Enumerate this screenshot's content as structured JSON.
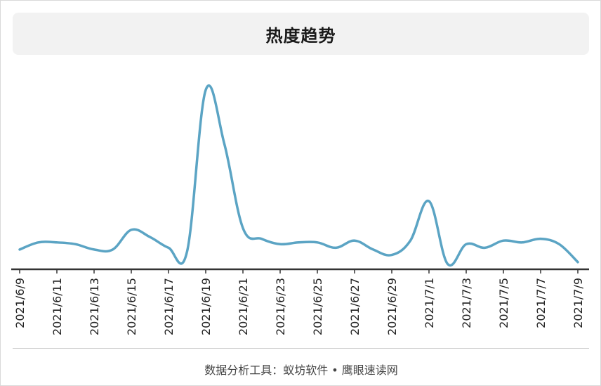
{
  "chart_data": {
    "type": "line",
    "title": "热度趋势",
    "x": [
      "2021/6/9",
      "2021/6/10",
      "2021/6/11",
      "2021/6/12",
      "2021/6/13",
      "2021/6/14",
      "2021/6/15",
      "2021/6/16",
      "2021/6/17",
      "2021/6/18",
      "2021/6/19",
      "2021/6/20",
      "2021/6/21",
      "2021/6/22",
      "2021/6/23",
      "2021/6/24",
      "2021/6/25",
      "2021/6/26",
      "2021/6/27",
      "2021/6/28",
      "2021/6/29",
      "2021/6/30",
      "2021/7/1",
      "2021/7/2",
      "2021/7/3",
      "2021/7/4",
      "2021/7/5",
      "2021/7/6",
      "2021/7/7",
      "2021/7/8",
      "2021/7/9"
    ],
    "tick_labels": [
      "2021/6/9",
      "2021/6/11",
      "2021/6/13",
      "2021/6/15",
      "2021/6/17",
      "2021/6/19",
      "2021/6/21",
      "2021/6/23",
      "2021/6/25",
      "2021/6/27",
      "2021/6/29",
      "2021/7/1",
      "2021/7/3",
      "2021/7/5",
      "2021/7/7",
      "2021/7/9"
    ],
    "series": [
      {
        "values": [
          11,
          15,
          15,
          14,
          11,
          11,
          22,
          18,
          12,
          10,
          100,
          70,
          23,
          17,
          14,
          15,
          15,
          12,
          16,
          11,
          8,
          16,
          38,
          3,
          14,
          12,
          16,
          15,
          17,
          14,
          4
        ]
      }
    ],
    "color": "#5ba4c4",
    "ylim": [
      0,
      100
    ],
    "grid": false,
    "legend": "none"
  },
  "footer": {
    "text": "数据分析工具：蚁坊软件 • 鹰眼速读网"
  }
}
